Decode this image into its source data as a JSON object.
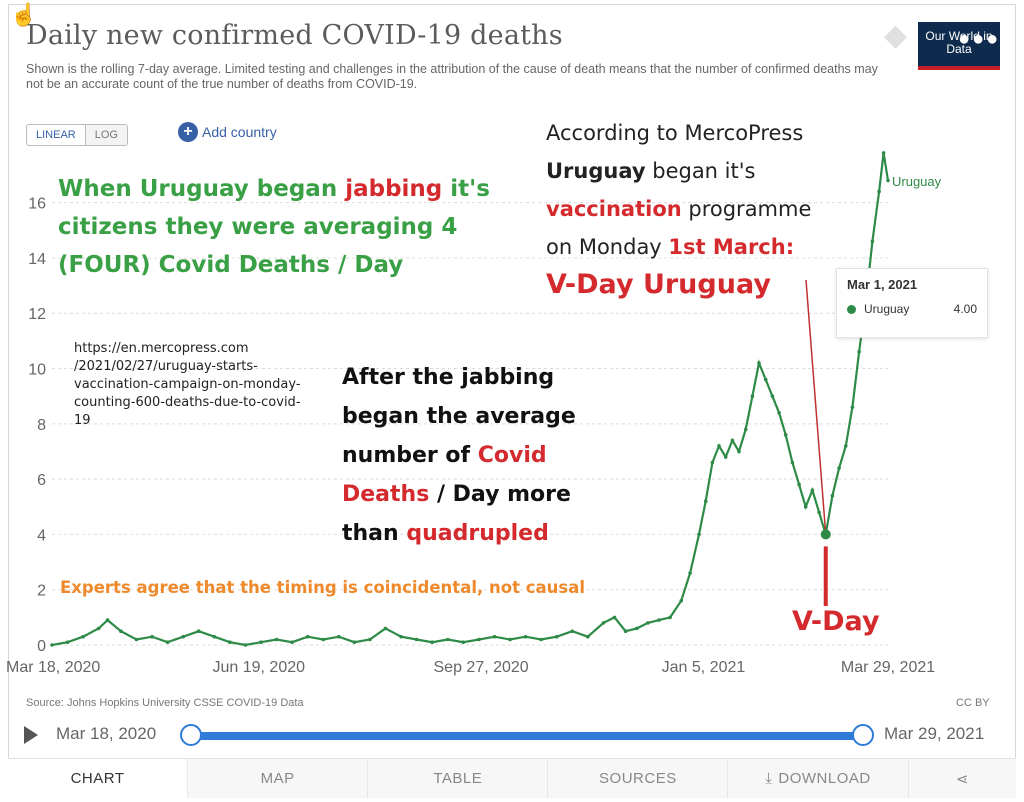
{
  "header": {
    "title": "Daily new confirmed COVID-19 deaths",
    "subtitle": "Shown is the rolling 7-day average. Limited testing and challenges in the attribution of the cause of death means that the number of confirmed deaths may not be an accurate count of the true number of deaths from COVID-19.",
    "logo_text": "Our World in Data"
  },
  "controls": {
    "linear_label": "LINEAR",
    "log_label": "LOG",
    "add_country_label": "Add country"
  },
  "annotations": {
    "green_prefix": "When Uruguay began ",
    "green_red": "jabbing",
    "green_suffix": " it's citizens they were averaging 4 (FOUR) Covid Deaths / Day",
    "merco_line1": "According to MercoPress",
    "merco_uruguay": "Uruguay",
    "merco_began": " began it's",
    "merco_vaccination": "vaccination",
    "merco_programme": " programme",
    "merco_on_monday": "on Monday ",
    "merco_date": "1st March:",
    "merco_vday": "V-Day Uruguay",
    "url_text": "https://en.mercopress.com /2021/02/27/uruguay-starts-vaccination-campaign-on-monday-counting-600-deaths-due-to-covid-19",
    "after_prefix": "After the jabbing began the average number of ",
    "after_red1": "Covid Deaths",
    "after_mid": " / Day more than ",
    "after_red2": "quadrupled",
    "experts": "Experts agree that the timing is coincidental, not causal",
    "vday_bottom": "V-Day"
  },
  "tooltip": {
    "date": "Mar 1, 2021",
    "series": "Uruguay",
    "value": "4.00"
  },
  "footer": {
    "source": "Source: Johns Hopkins University CSSE COVID-19 Data",
    "license": "CC BY"
  },
  "timeline": {
    "start": "Mar 18, 2020",
    "end": "Mar 29, 2021"
  },
  "tabs": [
    "CHART",
    "MAP",
    "TABLE",
    "SOURCES",
    "DOWNLOAD"
  ],
  "colors": {
    "series": "#2e8b47",
    "accent": "#3760a6",
    "annotation_red": "#d42a2e",
    "annotation_green": "#3aa046"
  },
  "chart_data": {
    "type": "line",
    "title": "Daily new confirmed COVID-19 deaths",
    "xlabel": "",
    "ylabel": "",
    "ylim": [
      0,
      17
    ],
    "yticks": [
      0,
      2,
      4,
      6,
      8,
      10,
      12,
      14,
      16
    ],
    "xtick_labels": [
      "Mar 18, 2020",
      "Jun 19, 2020",
      "Sep 27, 2020",
      "Jan 5, 2021",
      "Mar 29, 2021"
    ],
    "xtick_dates": [
      "2020-03-18",
      "2020-06-19",
      "2020-09-27",
      "2021-01-05",
      "2021-03-29"
    ],
    "grid": true,
    "series": [
      {
        "name": "Uruguay",
        "points": [
          [
            "2020-03-18",
            0
          ],
          [
            "2020-03-25",
            0.1
          ],
          [
            "2020-04-01",
            0.3
          ],
          [
            "2020-04-08",
            0.6
          ],
          [
            "2020-04-12",
            0.9
          ],
          [
            "2020-04-18",
            0.5
          ],
          [
            "2020-04-25",
            0.2
          ],
          [
            "2020-05-02",
            0.3
          ],
          [
            "2020-05-09",
            0.1
          ],
          [
            "2020-05-16",
            0.3
          ],
          [
            "2020-05-23",
            0.5
          ],
          [
            "2020-05-30",
            0.3
          ],
          [
            "2020-06-06",
            0.1
          ],
          [
            "2020-06-13",
            0.0
          ],
          [
            "2020-06-20",
            0.1
          ],
          [
            "2020-06-27",
            0.2
          ],
          [
            "2020-07-04",
            0.1
          ],
          [
            "2020-07-11",
            0.3
          ],
          [
            "2020-07-18",
            0.2
          ],
          [
            "2020-07-25",
            0.3
          ],
          [
            "2020-08-01",
            0.1
          ],
          [
            "2020-08-08",
            0.2
          ],
          [
            "2020-08-15",
            0.6
          ],
          [
            "2020-08-22",
            0.3
          ],
          [
            "2020-08-29",
            0.2
          ],
          [
            "2020-09-05",
            0.1
          ],
          [
            "2020-09-12",
            0.2
          ],
          [
            "2020-09-19",
            0.1
          ],
          [
            "2020-09-26",
            0.2
          ],
          [
            "2020-10-03",
            0.3
          ],
          [
            "2020-10-10",
            0.2
          ],
          [
            "2020-10-17",
            0.3
          ],
          [
            "2020-10-24",
            0.2
          ],
          [
            "2020-10-31",
            0.3
          ],
          [
            "2020-11-07",
            0.5
          ],
          [
            "2020-11-14",
            0.3
          ],
          [
            "2020-11-21",
            0.8
          ],
          [
            "2020-11-26",
            1.0
          ],
          [
            "2020-12-01",
            0.5
          ],
          [
            "2020-12-06",
            0.6
          ],
          [
            "2020-12-11",
            0.8
          ],
          [
            "2020-12-16",
            0.9
          ],
          [
            "2020-12-21",
            1.0
          ],
          [
            "2020-12-26",
            1.6
          ],
          [
            "2020-12-30",
            2.6
          ],
          [
            "2021-01-03",
            4.0
          ],
          [
            "2021-01-06",
            5.2
          ],
          [
            "2021-01-09",
            6.6
          ],
          [
            "2021-01-12",
            7.2
          ],
          [
            "2021-01-15",
            6.8
          ],
          [
            "2021-01-18",
            7.4
          ],
          [
            "2021-01-21",
            7.0
          ],
          [
            "2021-01-24",
            7.8
          ],
          [
            "2021-01-27",
            9.0
          ],
          [
            "2021-01-30",
            10.2
          ],
          [
            "2021-02-02",
            9.6
          ],
          [
            "2021-02-05",
            9.0
          ],
          [
            "2021-02-08",
            8.4
          ],
          [
            "2021-02-11",
            7.6
          ],
          [
            "2021-02-14",
            6.6
          ],
          [
            "2021-02-17",
            5.8
          ],
          [
            "2021-02-20",
            5.0
          ],
          [
            "2021-02-23",
            5.6
          ],
          [
            "2021-02-26",
            4.8
          ],
          [
            "2021-03-01",
            4.0
          ],
          [
            "2021-03-04",
            5.4
          ],
          [
            "2021-03-07",
            6.4
          ],
          [
            "2021-03-10",
            7.2
          ],
          [
            "2021-03-13",
            8.6
          ],
          [
            "2021-03-16",
            10.6
          ],
          [
            "2021-03-19",
            12.4
          ],
          [
            "2021-03-22",
            14.6
          ],
          [
            "2021-03-25",
            16.4
          ],
          [
            "2021-03-27",
            17.8
          ],
          [
            "2021-03-29",
            16.8
          ]
        ]
      }
    ],
    "highlight": {
      "date": "2021-03-01",
      "value": 4.0,
      "label": "V-Day"
    }
  }
}
